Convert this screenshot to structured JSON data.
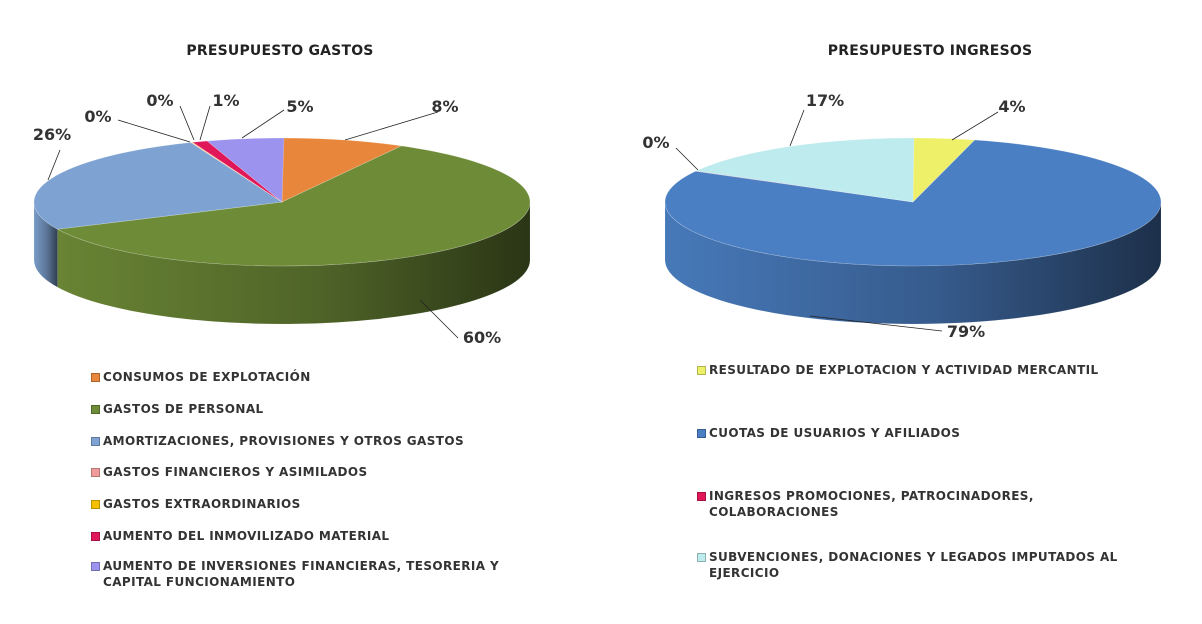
{
  "chart_data": [
    {
      "type": "pie",
      "title": "PRESUPUESTO GASTOS",
      "categories": [
        "CONSUMOS DE EXPLOTACIÓN",
        "GASTOS DE PERSONAL",
        "AMORTIZACIONES, PROVISIONES Y OTROS GASTOS",
        "GASTOS FINANCIEROS Y ASIMILADOS",
        "GASTOS EXTRAORDINARIOS",
        "AUMENTO DEL INMOVILIZADO MATERIAL",
        "AUMENTO DE INVERSIONES FINANCIERAS, TESORERIA Y CAPITAL FUNCIONAMIENTO"
      ],
      "values": [
        8,
        60,
        26,
        0,
        0,
        1,
        5
      ],
      "labels": [
        "8%",
        "60%",
        "26%",
        "0%",
        "0%",
        "1%",
        "5%"
      ],
      "colors": [
        "#E8873C",
        "#6E8B37",
        "#7EA3D2",
        "#F19C9C",
        "#F4C000",
        "#E0185A",
        "#9B93EE"
      ],
      "legend_position": "bottom"
    },
    {
      "type": "pie",
      "title": "PRESUPUESTO INGRESOS",
      "categories": [
        "RESULTADO DE EXPLOTACION Y ACTIVIDAD MERCANTIL",
        "CUOTAS DE USUARIOS Y AFILIADOS",
        "INGRESOS PROMOCIONES, PATROCINADORES, COLABORACIONES",
        "SUBVENCIONES, DONACIONES Y LEGADOS IMPUTADOS AL EJERCICIO"
      ],
      "values": [
        4,
        79,
        0,
        17
      ],
      "labels": [
        "4%",
        "79%",
        "0%",
        "17%"
      ],
      "colors": [
        "#EEF06A",
        "#4B7FC3",
        "#E0185A",
        "#BDEBEE"
      ],
      "legend_position": "bottom"
    }
  ]
}
